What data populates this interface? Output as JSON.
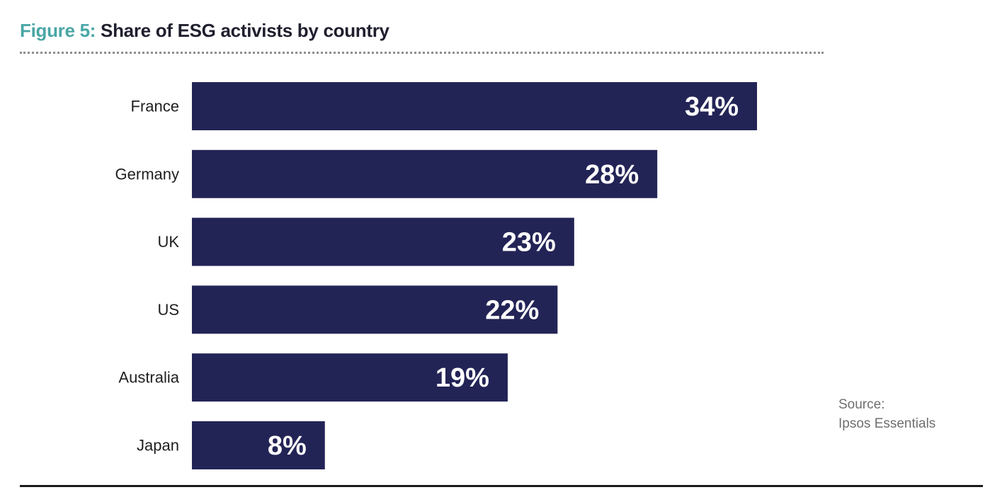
{
  "title": {
    "figure_label": "Figure 5:",
    "text": "Share of ESG activists by country"
  },
  "source": {
    "line1": "Source:",
    "line2": "Ipsos Essentials"
  },
  "colors": {
    "bar": "#232456",
    "bar_label": "#ffffff",
    "category_text": "#1f1f1f",
    "figure_label": "#4aa6a6"
  },
  "chart_data": {
    "type": "bar",
    "orientation": "horizontal",
    "title": "Share of ESG activists by country",
    "categories": [
      "France",
      "Germany",
      "UK",
      "US",
      "Australia",
      "Japan"
    ],
    "values": [
      34,
      28,
      23,
      22,
      19,
      8
    ],
    "value_labels": [
      "34%",
      "28%",
      "23%",
      "22%",
      "19%",
      "8%"
    ],
    "xlabel": "",
    "ylabel": "",
    "xlim": [
      0,
      34
    ],
    "grid": false,
    "legend": "none"
  }
}
